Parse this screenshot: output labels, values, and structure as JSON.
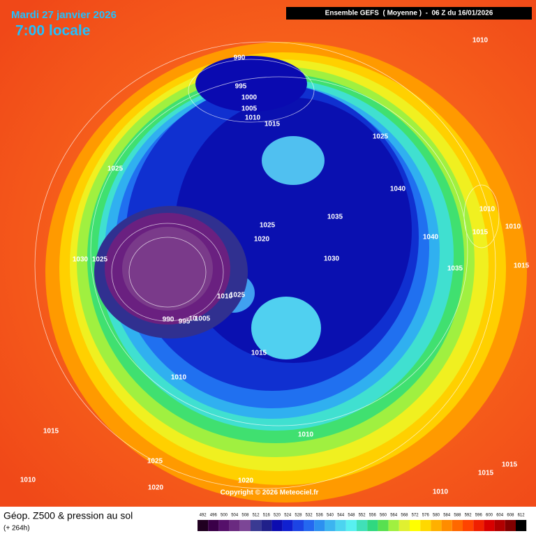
{
  "header": {
    "date": "Mardi 27 janvier 2026",
    "time": "7:00 locale",
    "model": "Ensemble GEFS  ( Moyenne )  -  06 Z du 16/01/2026"
  },
  "map": {
    "pressure_labels": [
      "990",
      "995",
      "1000",
      "1005",
      "1010",
      "1015",
      "1025",
      "1010",
      "1025",
      "1040",
      "1035",
      "1025",
      "1020",
      "1030",
      "1040",
      "1035",
      "1015",
      "1010",
      "1010",
      "1015",
      "1030",
      "1025",
      "1010",
      "1025",
      "990",
      "995",
      "10",
      "1005",
      "1015",
      "1010",
      "1015",
      "1025",
      "1010",
      "1020",
      "1020",
      "1010",
      "1015",
      "1015",
      "1010"
    ],
    "copyright": "Copyright © 2026 Meteociel.fr"
  },
  "legend": {
    "title": "Géop. Z500 & pression au sol",
    "subtitle": "(+ 264h)",
    "scale": [
      "492",
      "496",
      "500",
      "504",
      "508",
      "512",
      "516",
      "520",
      "524",
      "528",
      "532",
      "536",
      "540",
      "544",
      "548",
      "552",
      "556",
      "560",
      "564",
      "568",
      "572",
      "576",
      "580",
      "584",
      "588",
      "592",
      "596",
      "600",
      "604",
      "608",
      "612"
    ]
  }
}
